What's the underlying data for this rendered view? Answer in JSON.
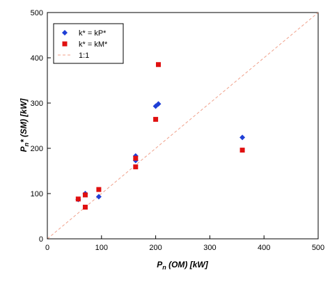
{
  "chart_data": {
    "type": "scatter",
    "xlabel": {
      "main": "P",
      "sub": "n",
      "rest": " (OM) [kW]"
    },
    "ylabel": {
      "main": "P",
      "sub": "n",
      "rest": "* (SM) [kW]"
    },
    "xlim": [
      0,
      500
    ],
    "ylim": [
      0,
      500
    ],
    "xticks": [
      0,
      100,
      200,
      300,
      400,
      500
    ],
    "yticks": [
      0,
      100,
      200,
      300,
      400,
      500
    ],
    "grid": false,
    "legend_position": "top-left",
    "series": [
      {
        "name": "k* = kP*",
        "marker": "diamond",
        "color": "#1f3fd6",
        "points": [
          [
            57,
            87
          ],
          [
            70,
            100
          ],
          [
            95,
            93
          ],
          [
            163,
            183
          ],
          [
            163,
            173
          ],
          [
            200,
            293
          ],
          [
            205,
            298
          ],
          [
            360,
            224
          ]
        ]
      },
      {
        "name": "k* = kM*",
        "marker": "square",
        "color": "#e01010",
        "points": [
          [
            57,
            88
          ],
          [
            70,
            97
          ],
          [
            70,
            70
          ],
          [
            95,
            109
          ],
          [
            163,
            178
          ],
          [
            163,
            159
          ],
          [
            200,
            264
          ],
          [
            205,
            385
          ],
          [
            360,
            196
          ]
        ]
      }
    ],
    "reference_line": {
      "name": "1:1",
      "color": "#f0a08a",
      "from": [
        0,
        0
      ],
      "to": [
        500,
        500
      ]
    }
  }
}
